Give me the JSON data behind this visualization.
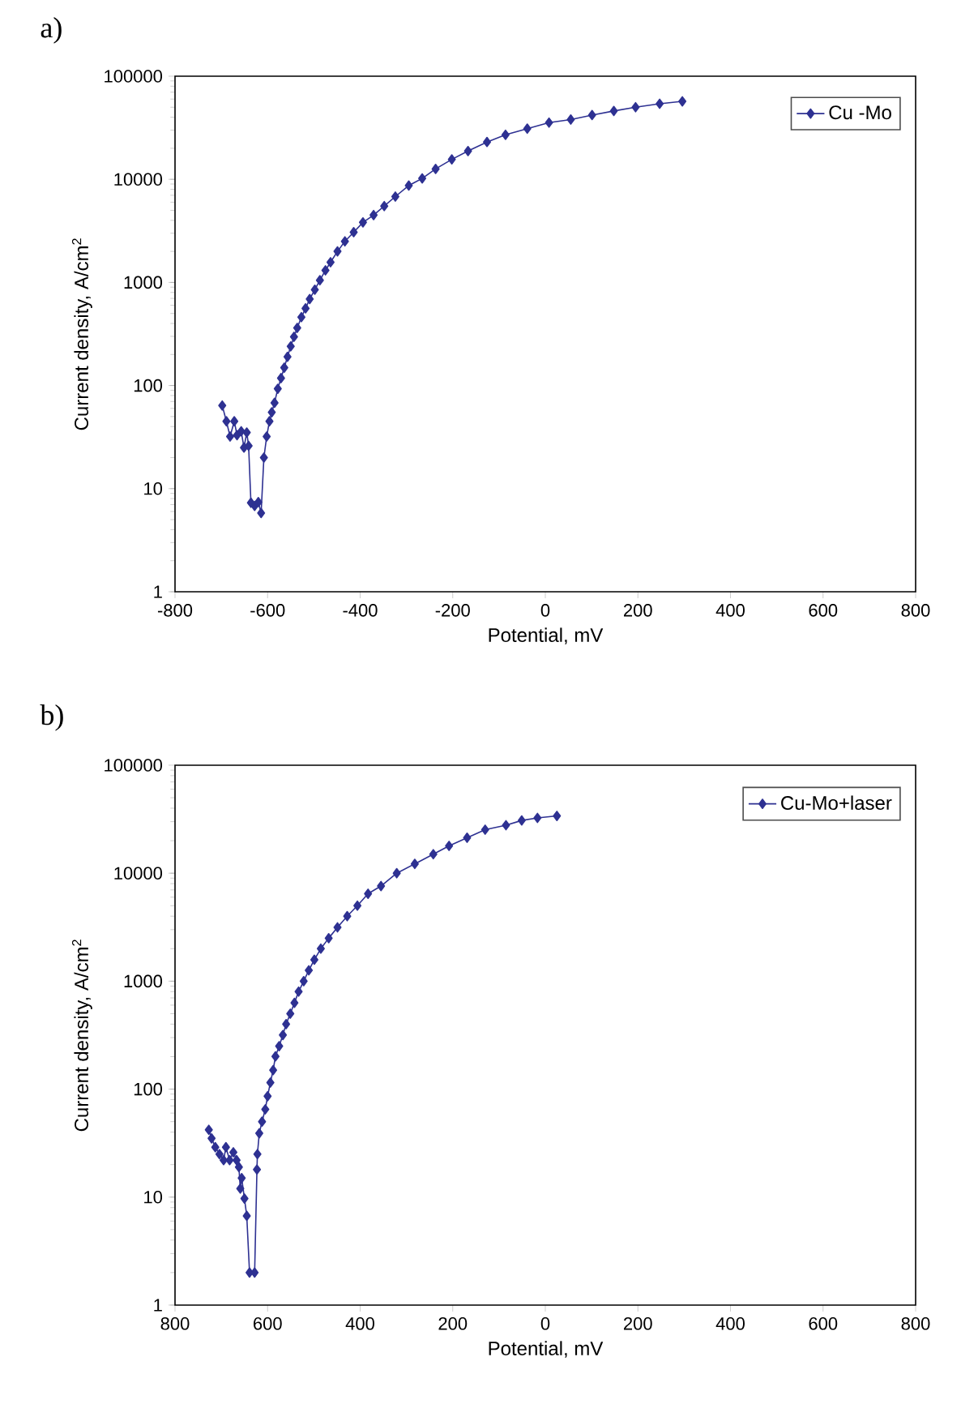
{
  "chart_data": [
    {
      "type": "line",
      "title": "a)",
      "xlabel": "Potential, mV",
      "ylabel": "Current density,  A/cm$^{2}$",
      "log": "y",
      "legend": "top right",
      "marker": "diamond",
      "line_style": "solid",
      "xlim": [
        -800,
        800
      ],
      "xticks": [
        -800,
        -600,
        -400,
        -200,
        0,
        200,
        400,
        600,
        800
      ],
      "ylim": [
        1,
        100000
      ],
      "yticks": [
        1,
        10,
        100,
        1000,
        10000,
        100000
      ],
      "series": [
        {
          "name": "Cu -Mo",
          "color": "#2e3192",
          "x": [
            -698,
            -689,
            -681,
            -672,
            -666,
            -657,
            -651,
            -645,
            -641,
            -636,
            -628,
            -620,
            -614,
            -608,
            -602,
            -596,
            -591,
            -585,
            -578,
            -571,
            -564,
            -557,
            -550,
            -543,
            -536,
            -527,
            -518,
            -509,
            -498,
            -487,
            -475,
            -464,
            -449,
            -433,
            -414,
            -394,
            -371,
            -348,
            -324,
            -295,
            -266,
            -237,
            -202,
            -167,
            -126,
            -86,
            -39,
            8,
            55,
            101,
            148,
            195,
            247,
            296
          ],
          "values": [
            64,
            45,
            32,
            45,
            33,
            36,
            25,
            35,
            26,
            7.3,
            6.8,
            7.4,
            5.8,
            20,
            32,
            45,
            55,
            68,
            93,
            118,
            149,
            190,
            240,
            297,
            362,
            460,
            560,
            690,
            850,
            1050,
            1310,
            1570,
            2000,
            2500,
            3070,
            3820,
            4500,
            5500,
            6800,
            8700,
            10200,
            12600,
            15600,
            18800,
            23000,
            27000,
            31000,
            35500,
            38000,
            42000,
            46000,
            50000,
            54000,
            57000
          ]
        }
      ]
    },
    {
      "type": "line",
      "title": "b)",
      "xlabel": "Potential, mV",
      "ylabel": "Current density,  A/cm$^{2}$",
      "log": "y",
      "legend": "top right",
      "marker": "diamond",
      "line_style": "solid",
      "xlim": [
        -800,
        800
      ],
      "xticks": [
        {
          "value": -800,
          "label": "800"
        },
        {
          "value": -600,
          "label": "600"
        },
        {
          "value": -400,
          "label": "400"
        },
        {
          "value": -200,
          "label": "200"
        },
        0,
        200,
        400,
        600,
        800
      ],
      "ylim": [
        1,
        100000
      ],
      "yticks": [
        1,
        10,
        100,
        1000,
        10000,
        100000
      ],
      "series": [
        {
          "name": "Cu-Mo+laser",
          "color": "#2e3192",
          "x": [
            -727,
            -721,
            -713,
            -704,
            -695,
            -690,
            -682,
            -674,
            -667,
            -662,
            -659,
            -656,
            -650,
            -645,
            -639,
            -628,
            -623,
            -622,
            -618,
            -612,
            -605,
            -600,
            -594,
            -588,
            -583,
            -575,
            -567,
            -560,
            -551,
            -542,
            -533,
            -522,
            -511,
            -499,
            -485,
            -468,
            -449,
            -428,
            -406,
            -383,
            -355,
            -321,
            -282,
            -242,
            -208,
            -169,
            -130,
            -85,
            -51,
            -17,
            25
          ],
          "values": [
            42,
            35,
            29,
            25,
            22,
            29,
            22,
            26,
            22,
            19,
            12,
            15,
            9.7,
            6.7,
            2.0,
            2.0,
            18,
            25,
            39,
            50,
            65,
            86,
            115,
            150,
            201,
            250,
            317,
            400,
            500,
            630,
            800,
            1000,
            1260,
            1580,
            2000,
            2500,
            3150,
            4000,
            5000,
            6450,
            7600,
            10000,
            12200,
            15000,
            17900,
            21300,
            25300,
            27800,
            30800,
            32500,
            33900
          ]
        }
      ]
    }
  ]
}
